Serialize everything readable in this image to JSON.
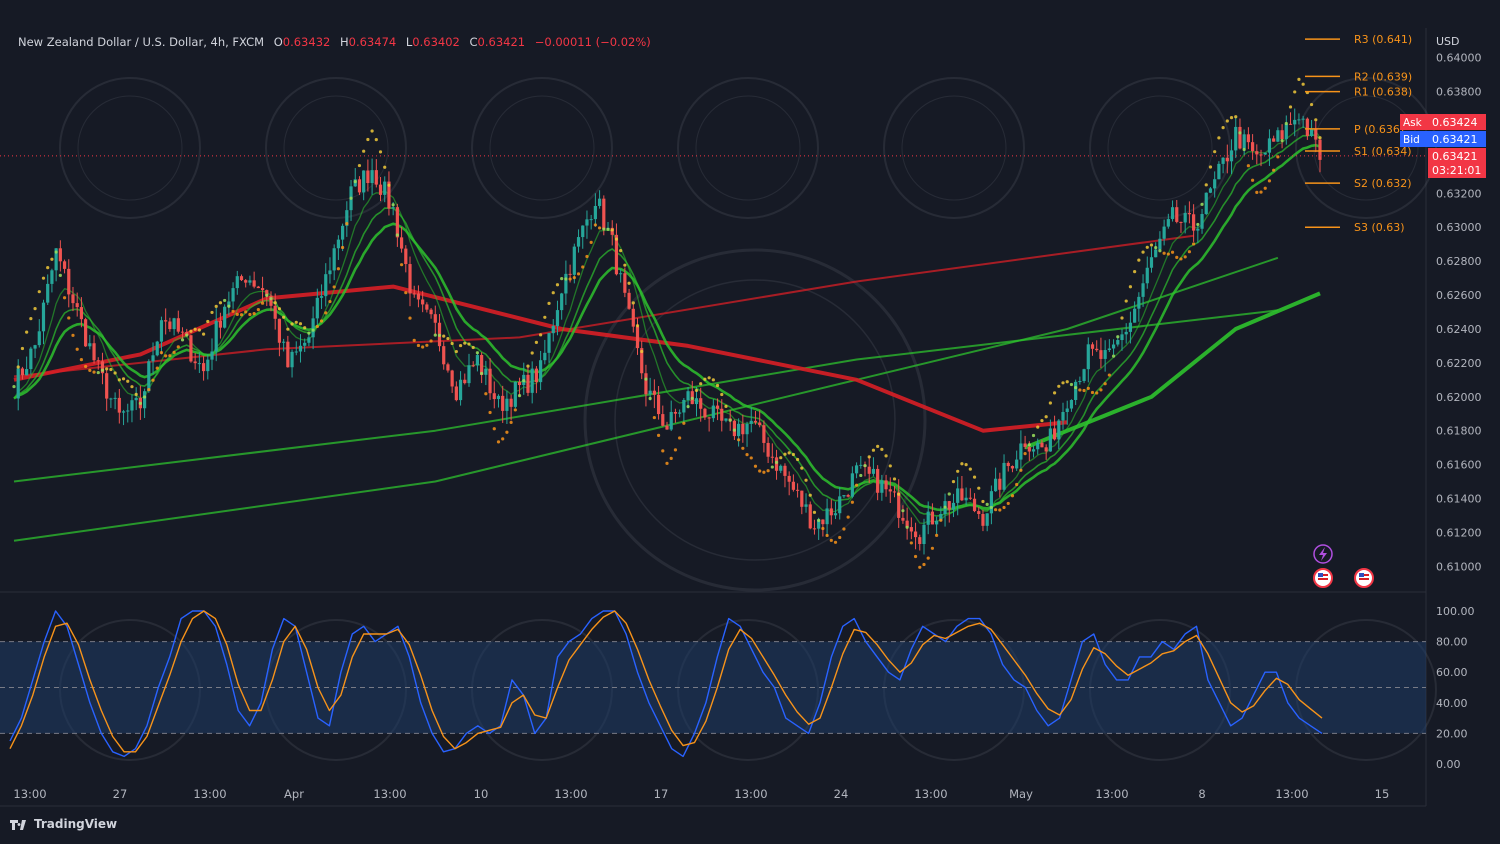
{
  "header": {
    "symbol": "New Zealand Dollar / U.S. Dollar, 4h, FXCM",
    "o_label": "O",
    "o_value": "0.63432",
    "h_label": "H",
    "h_value": "0.63474",
    "l_label": "L",
    "l_value": "0.63402",
    "c_label": "C",
    "c_value": "0.63421",
    "change": "−0.00011 (−0.02%)"
  },
  "currency": "USD",
  "quote": {
    "ask_label": "Ask",
    "ask": "0.63424",
    "bid_label": "Bid",
    "bid": "0.63421",
    "last": "0.63421",
    "countdown": "03:21:01"
  },
  "pivots": [
    {
      "label": "R3 (0.641)",
      "value": 0.6411
    },
    {
      "label": "R2 (0.639)",
      "value": 0.6389
    },
    {
      "label": "R1 (0.638)",
      "value": 0.638
    },
    {
      "label": "P (0.636)",
      "value": 0.6358
    },
    {
      "label": "S1 (0.634)",
      "value": 0.6345
    },
    {
      "label": "S2 (0.632)",
      "value": 0.6326
    },
    {
      "label": "S3 (0.63)",
      "value": 0.63
    }
  ],
  "colors": {
    "background": "#161a25",
    "up_candle": "#26a69a",
    "down_candle": "#ef5350",
    "ema_green": "#2ec22e",
    "ema_red": "#d81f26",
    "stoch_k": "#2962ff",
    "stoch_d": "#f7931a",
    "pivot": "#f7931a",
    "ask_bg": "#f23645",
    "bid_bg": "#2962ff"
  },
  "chart_data": [
    {
      "type": "candlestick",
      "title": "New Zealand Dollar / U.S. Dollar, 4h, FXCM",
      "ylabel": "USD",
      "y_ticks": [
        "0.64000",
        "0.63800",
        "0.63600",
        "0.63400",
        "0.63200",
        "0.63000",
        "0.62800",
        "0.62600",
        "0.62400",
        "0.62200",
        "0.62000",
        "0.61800",
        "0.61600",
        "0.61400",
        "0.61200",
        "0.61000"
      ],
      "ylim": [
        0.6086,
        0.6414
      ],
      "x_ticks": [
        "13:00",
        "27",
        "13:00",
        "Apr",
        "13:00",
        "10",
        "13:00",
        "17",
        "13:00",
        "24",
        "13:00",
        "May",
        "13:00",
        "8",
        "13:00",
        "15"
      ],
      "close_path": [
        {
          "bar": 0,
          "close": 0.6206
        },
        {
          "bar": 5,
          "close": 0.623
        },
        {
          "bar": 10,
          "close": 0.6285
        },
        {
          "bar": 15,
          "close": 0.625
        },
        {
          "bar": 20,
          "close": 0.6215
        },
        {
          "bar": 25,
          "close": 0.6188
        },
        {
          "bar": 30,
          "close": 0.6195
        },
        {
          "bar": 35,
          "close": 0.6248
        },
        {
          "bar": 40,
          "close": 0.6235
        },
        {
          "bar": 45,
          "close": 0.6215
        },
        {
          "bar": 50,
          "close": 0.6255
        },
        {
          "bar": 55,
          "close": 0.6272
        },
        {
          "bar": 60,
          "close": 0.6262
        },
        {
          "bar": 65,
          "close": 0.6218
        },
        {
          "bar": 70,
          "close": 0.6235
        },
        {
          "bar": 75,
          "close": 0.6278
        },
        {
          "bar": 80,
          "close": 0.632
        },
        {
          "bar": 85,
          "close": 0.6335
        },
        {
          "bar": 90,
          "close": 0.631
        },
        {
          "bar": 95,
          "close": 0.6255
        },
        {
          "bar": 100,
          "close": 0.624
        },
        {
          "bar": 105,
          "close": 0.6205
        },
        {
          "bar": 110,
          "close": 0.6222
        },
        {
          "bar": 115,
          "close": 0.6195
        },
        {
          "bar": 120,
          "close": 0.6205
        },
        {
          "bar": 125,
          "close": 0.6215
        },
        {
          "bar": 130,
          "close": 0.6265
        },
        {
          "bar": 135,
          "close": 0.6298
        },
        {
          "bar": 138,
          "close": 0.6318
        },
        {
          "bar": 142,
          "close": 0.629
        },
        {
          "bar": 146,
          "close": 0.6245
        },
        {
          "bar": 150,
          "close": 0.6205
        },
        {
          "bar": 155,
          "close": 0.6182
        },
        {
          "bar": 160,
          "close": 0.62
        },
        {
          "bar": 165,
          "close": 0.619
        },
        {
          "bar": 170,
          "close": 0.618
        },
        {
          "bar": 175,
          "close": 0.6185
        },
        {
          "bar": 180,
          "close": 0.6165
        },
        {
          "bar": 185,
          "close": 0.6145
        },
        {
          "bar": 190,
          "close": 0.6125
        },
        {
          "bar": 195,
          "close": 0.6135
        },
        {
          "bar": 200,
          "close": 0.6155
        },
        {
          "bar": 205,
          "close": 0.615
        },
        {
          "bar": 210,
          "close": 0.6135
        },
        {
          "bar": 215,
          "close": 0.612
        },
        {
          "bar": 220,
          "close": 0.6135
        },
        {
          "bar": 225,
          "close": 0.614
        },
        {
          "bar": 230,
          "close": 0.613
        },
        {
          "bar": 235,
          "close": 0.6155
        },
        {
          "bar": 240,
          "close": 0.6175
        },
        {
          "bar": 245,
          "close": 0.6168
        },
        {
          "bar": 250,
          "close": 0.62
        },
        {
          "bar": 255,
          "close": 0.6225
        },
        {
          "bar": 260,
          "close": 0.6222
        },
        {
          "bar": 265,
          "close": 0.6245
        },
        {
          "bar": 270,
          "close": 0.628
        },
        {
          "bar": 275,
          "close": 0.6305
        },
        {
          "bar": 280,
          "close": 0.63
        },
        {
          "bar": 285,
          "close": 0.6325
        },
        {
          "bar": 290,
          "close": 0.6355
        },
        {
          "bar": 295,
          "close": 0.634
        },
        {
          "bar": 300,
          "close": 0.6352
        },
        {
          "bar": 305,
          "close": 0.6368
        },
        {
          "bar": 310,
          "close": 0.6342
        }
      ],
      "moving_averages": [
        {
          "color": "green",
          "points": [
            [
              0,
              0.615
            ],
            [
              100,
              0.618
            ],
            [
              200,
              0.6222
            ],
            [
              300,
              0.6251
            ]
          ]
        },
        {
          "color": "green",
          "points": [
            [
              0,
              0.6115
            ],
            [
              100,
              0.615
            ],
            [
              200,
              0.621
            ],
            [
              250,
              0.624
            ],
            [
              300,
              0.6282
            ]
          ]
        },
        {
          "color": "red",
          "points": [
            [
              0,
              0.6212
            ],
            [
              60,
              0.6228
            ],
            [
              120,
              0.6235
            ],
            [
              200,
              0.6268
            ],
            [
              280,
              0.6295
            ]
          ]
        },
        {
          "color": "green",
          "points": [
            [
              240,
              0.617
            ],
            [
              270,
              0.62
            ],
            [
              290,
              0.624
            ],
            [
              310,
              0.6261
            ]
          ]
        },
        {
          "color": "red",
          "points": [
            [
              0,
              0.621
            ],
            [
              30,
              0.6225
            ],
            [
              60,
              0.6258
            ],
            [
              90,
              0.6265
            ],
            [
              130,
              0.624
            ],
            [
              160,
              0.623
            ],
            [
              200,
              0.621
            ],
            [
              230,
              0.618
            ],
            [
              250,
              0.6185
            ]
          ]
        }
      ]
    },
    {
      "type": "line",
      "ylim": [
        -5,
        105
      ],
      "y_ticks": [
        "100.00",
        "80.00",
        "60.00",
        "40.00",
        "20.00",
        "0.00"
      ],
      "bands": {
        "upper": 80,
        "middle": 50,
        "lower": 20
      },
      "series": [
        {
          "color": "blue",
          "values": [
            15,
            30,
            55,
            80,
            100,
            90,
            65,
            40,
            20,
            8,
            5,
            10,
            25,
            50,
            70,
            95,
            100,
            100,
            90,
            65,
            35,
            25,
            40,
            75,
            95,
            90,
            60,
            30,
            25,
            60,
            85,
            90,
            80,
            85,
            90,
            70,
            40,
            20,
            8,
            10,
            20,
            25,
            20,
            25,
            55,
            45,
            20,
            30,
            70,
            80,
            85,
            95,
            100,
            100,
            85,
            60,
            40,
            25,
            10,
            5,
            20,
            40,
            70,
            95,
            90,
            75,
            60,
            50,
            30,
            25,
            20,
            40,
            70,
            90,
            95,
            80,
            70,
            60,
            55,
            75,
            90,
            85,
            80,
            90,
            95,
            95,
            85,
            65,
            55,
            50,
            35,
            25,
            30,
            55,
            80,
            85,
            65,
            55,
            55,
            70,
            70,
            80,
            75,
            85,
            90,
            55,
            40,
            25,
            30,
            45,
            60,
            60,
            40,
            30,
            25,
            20
          ]
        },
        {
          "color": "orange",
          "values": [
            10,
            25,
            45,
            70,
            90,
            92,
            78,
            55,
            35,
            18,
            8,
            8,
            18,
            38,
            58,
            80,
            95,
            100,
            95,
            78,
            52,
            35,
            35,
            55,
            80,
            90,
            75,
            50,
            35,
            45,
            70,
            85,
            85,
            85,
            88,
            78,
            58,
            35,
            18,
            10,
            14,
            20,
            22,
            24,
            40,
            45,
            32,
            30,
            50,
            68,
            78,
            88,
            96,
            100,
            92,
            75,
            55,
            38,
            22,
            12,
            14,
            28,
            50,
            75,
            88,
            82,
            70,
            58,
            45,
            34,
            26,
            30,
            50,
            72,
            88,
            86,
            78,
            68,
            60,
            66,
            78,
            84,
            82,
            86,
            90,
            92,
            88,
            78,
            68,
            58,
            46,
            36,
            32,
            42,
            62,
            76,
            72,
            64,
            58,
            62,
            66,
            72,
            74,
            80,
            84,
            72,
            56,
            40,
            34,
            38,
            48,
            56,
            52,
            42,
            36,
            30
          ]
        }
      ]
    }
  ],
  "brand": "TradingView"
}
